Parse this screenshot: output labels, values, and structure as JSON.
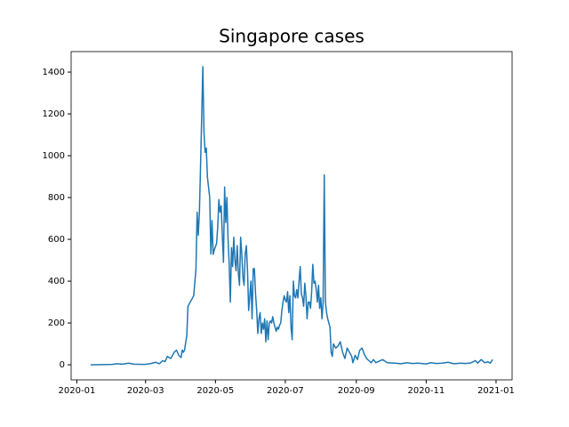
{
  "chart_data": {
    "type": "line",
    "title": "Singapore cases",
    "color": "#1f77b4",
    "x": [
      "2020-01-13",
      "2020-01-23",
      "2020-02-01",
      "2020-02-05",
      "2020-02-10",
      "2020-02-15",
      "2020-02-20",
      "2020-02-29",
      "2020-03-05",
      "2020-03-10",
      "2020-03-13",
      "2020-03-16",
      "2020-03-18",
      "2020-03-20",
      "2020-03-23",
      "2020-03-26",
      "2020-03-28",
      "2020-03-30",
      "2020-04-01",
      "2020-04-02",
      "2020-04-03",
      "2020-04-04",
      "2020-04-06",
      "2020-04-07",
      "2020-04-09",
      "2020-04-12",
      "2020-04-14",
      "2020-04-15",
      "2020-04-16",
      "2020-04-17",
      "2020-04-18",
      "2020-04-20",
      "2020-04-21",
      "2020-04-22",
      "2020-04-23",
      "2020-04-24",
      "2020-04-26",
      "2020-04-27",
      "2020-04-28",
      "2020-04-29",
      "2020-04-30",
      "2020-05-02",
      "2020-05-03",
      "2020-05-04",
      "2020-05-05",
      "2020-05-06",
      "2020-05-07",
      "2020-05-08",
      "2020-05-09",
      "2020-05-10",
      "2020-05-11",
      "2020-05-12",
      "2020-05-13",
      "2020-05-14",
      "2020-05-15",
      "2020-05-16",
      "2020-05-17",
      "2020-05-18",
      "2020-05-19",
      "2020-05-20",
      "2020-05-21",
      "2020-05-22",
      "2020-05-23",
      "2020-05-24",
      "2020-05-25",
      "2020-05-26",
      "2020-05-27",
      "2020-05-28",
      "2020-05-29",
      "2020-05-30",
      "2020-05-31",
      "2020-06-01",
      "2020-06-02",
      "2020-06-03",
      "2020-06-04",
      "2020-06-05",
      "2020-06-06",
      "2020-06-07",
      "2020-06-08",
      "2020-06-09",
      "2020-06-10",
      "2020-06-11",
      "2020-06-12",
      "2020-06-13",
      "2020-06-14",
      "2020-06-15",
      "2020-06-16",
      "2020-06-17",
      "2020-06-18",
      "2020-06-19",
      "2020-06-20",
      "2020-06-21",
      "2020-06-22",
      "2020-06-23",
      "2020-06-24",
      "2020-06-25",
      "2020-06-26",
      "2020-06-27",
      "2020-06-28",
      "2020-06-29",
      "2020-06-30",
      "2020-07-01",
      "2020-07-02",
      "2020-07-03",
      "2020-07-04",
      "2020-07-05",
      "2020-07-06",
      "2020-07-07",
      "2020-07-08",
      "2020-07-09",
      "2020-07-10",
      "2020-07-11",
      "2020-07-12",
      "2020-07-13",
      "2020-07-14",
      "2020-07-15",
      "2020-07-16",
      "2020-07-17",
      "2020-07-18",
      "2020-07-19",
      "2020-07-20",
      "2020-07-21",
      "2020-07-22",
      "2020-07-23",
      "2020-07-24",
      "2020-07-25",
      "2020-07-26",
      "2020-07-27",
      "2020-07-28",
      "2020-07-29",
      "2020-07-30",
      "2020-07-31",
      "2020-08-01",
      "2020-08-02",
      "2020-08-03",
      "2020-08-04",
      "2020-08-05",
      "2020-08-06",
      "2020-08-07",
      "2020-08-08",
      "2020-08-09",
      "2020-08-10",
      "2020-08-11",
      "2020-08-12",
      "2020-08-14",
      "2020-08-16",
      "2020-08-18",
      "2020-08-20",
      "2020-08-22",
      "2020-08-24",
      "2020-08-26",
      "2020-08-28",
      "2020-08-29",
      "2020-08-31",
      "2020-09-02",
      "2020-09-04",
      "2020-09-06",
      "2020-09-08",
      "2020-09-10",
      "2020-09-12",
      "2020-09-14",
      "2020-09-16",
      "2020-09-18",
      "2020-09-20",
      "2020-09-24",
      "2020-09-28",
      "2020-10-05",
      "2020-10-10",
      "2020-10-15",
      "2020-10-20",
      "2020-10-25",
      "2020-11-01",
      "2020-11-05",
      "2020-11-10",
      "2020-11-15",
      "2020-11-20",
      "2020-11-25",
      "2020-12-01",
      "2020-12-05",
      "2020-12-10",
      "2020-12-14",
      "2020-12-16",
      "2020-12-19",
      "2020-12-22",
      "2020-12-25",
      "2020-12-27",
      "2020-12-29"
    ],
    "values": [
      0,
      1,
      2,
      5,
      3,
      8,
      3,
      2,
      5,
      12,
      5,
      20,
      15,
      40,
      30,
      60,
      70,
      45,
      35,
      70,
      60,
      70,
      140,
      280,
      300,
      330,
      460,
      730,
      620,
      730,
      950,
      1426,
      1111,
      1016,
      1037,
      897,
      800,
      530,
      690,
      528,
      550,
      580,
      660,
      790,
      730,
      760,
      620,
      490,
      850,
      680,
      800,
      600,
      480,
      300,
      560,
      470,
      610,
      500,
      450,
      570,
      440,
      380,
      610,
      530,
      420,
      380,
      530,
      570,
      450,
      260,
      330,
      400,
      220,
      460,
      460,
      340,
      260,
      150,
      220,
      250,
      150,
      200,
      170,
      220,
      110,
      210,
      120,
      200,
      210,
      200,
      230,
      200,
      180,
      160,
      180,
      170,
      190,
      200,
      260,
      300,
      330,
      310,
      300,
      350,
      250,
      330,
      180,
      120,
      400,
      330,
      320,
      360,
      320,
      400,
      470,
      340,
      320,
      280,
      390,
      330,
      220,
      300,
      300,
      270,
      350,
      480,
      390,
      400,
      360,
      300,
      380,
      270,
      320,
      220,
      300,
      908,
      300,
      250,
      220,
      200,
      180,
      60,
      40,
      100,
      80,
      90,
      110,
      60,
      30,
      80,
      60,
      40,
      10,
      45,
      25,
      70,
      80,
      50,
      30,
      20,
      10,
      25,
      10,
      15,
      25,
      10,
      8,
      5,
      10,
      6,
      8,
      4,
      10,
      6,
      8,
      12,
      5,
      8,
      6,
      9,
      20,
      8,
      25,
      10,
      14,
      8,
      25
    ],
    "xlim": [
      "2019-12-27",
      "2021-01-15"
    ],
    "xticks": [
      {
        "value": "2020-01-01",
        "label": "2020-01"
      },
      {
        "value": "2020-03-01",
        "label": "2020-03"
      },
      {
        "value": "2020-05-01",
        "label": "2020-05"
      },
      {
        "value": "2020-07-01",
        "label": "2020-07"
      },
      {
        "value": "2020-09-01",
        "label": "2020-09"
      },
      {
        "value": "2020-11-01",
        "label": "2020-11"
      },
      {
        "value": "2021-01-01",
        "label": "2021-01"
      }
    ],
    "ylim": [
      -72,
      1498
    ],
    "yticks": [
      0,
      200,
      400,
      600,
      800,
      1000,
      1200,
      1400
    ],
    "grid": false
  }
}
